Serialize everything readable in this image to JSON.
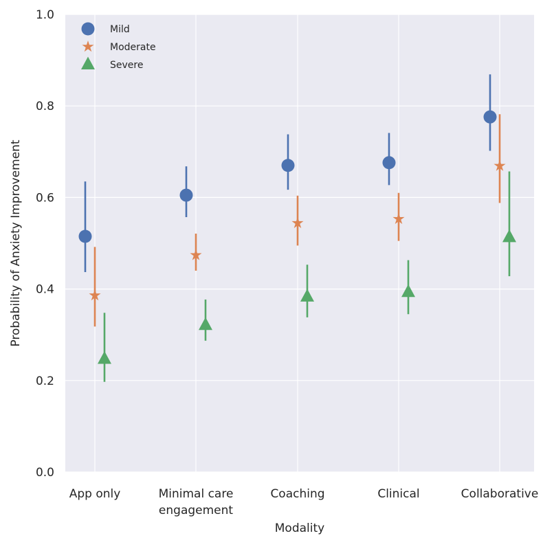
{
  "chart_data": {
    "type": "scatter",
    "xlabel": "Modality",
    "ylabel": "Probability of Anxiety Improvement",
    "ylim": [
      0.0,
      1.0
    ],
    "yticks": [
      "0.0",
      "0.2",
      "0.4",
      "0.6",
      "0.8",
      "1.0"
    ],
    "categories": [
      [
        "App only"
      ],
      [
        "Minimal care",
        "engagement"
      ],
      [
        "Coaching"
      ],
      [
        "Clinical"
      ],
      [
        "Collaborative"
      ]
    ],
    "grid": true,
    "legend_position": "top-left",
    "series": [
      {
        "name": "Mild",
        "marker": "circle",
        "color": "#4c72b0",
        "values": [
          0.515,
          0.605,
          0.67,
          0.676,
          0.776
        ],
        "lower": [
          0.437,
          0.557,
          0.617,
          0.627,
          0.702
        ],
        "upper": [
          0.635,
          0.668,
          0.738,
          0.741,
          0.869
        ]
      },
      {
        "name": "Moderate",
        "marker": "star",
        "color": "#dd8452",
        "values": [
          0.386,
          0.474,
          0.544,
          0.553,
          0.669
        ],
        "lower": [
          0.318,
          0.44,
          0.495,
          0.505,
          0.588
        ],
        "upper": [
          0.492,
          0.521,
          0.604,
          0.61,
          0.782
        ]
      },
      {
        "name": "Severe",
        "marker": "triangle",
        "color": "#55a868",
        "values": [
          0.247,
          0.321,
          0.383,
          0.393,
          0.513
        ],
        "lower": [
          0.197,
          0.287,
          0.338,
          0.345,
          0.428
        ],
        "upper": [
          0.348,
          0.377,
          0.453,
          0.463,
          0.657
        ]
      }
    ]
  }
}
